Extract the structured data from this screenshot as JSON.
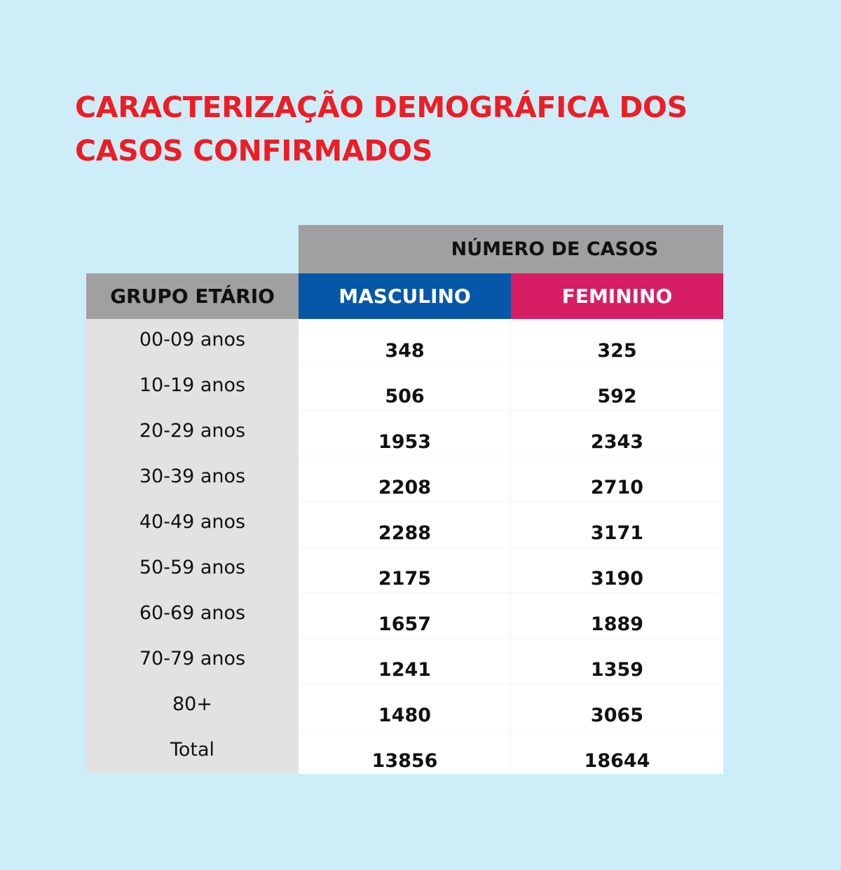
{
  "title_lines": [
    "CARACTERIZAÇÃO DEMOGRÁFICA DOS",
    "CASOS CONFIRMADOS"
  ],
  "table": {
    "header_top": "NÚMERO DE CASOS",
    "col_group": "GRUPO ETÁRIO",
    "col_masc": "MASCULINO",
    "col_fem": "FEMININO"
  },
  "colors": {
    "background": "#cdeef8",
    "title": "#ee1c25",
    "masculino": "#0757a8",
    "feminino": "#d71d63",
    "header_gray": "#a0a0a0"
  },
  "chart_data": {
    "type": "table",
    "title": "CARACTERIZAÇÃO DEMOGRÁFICA DOS CASOS CONFIRMADOS",
    "columns": [
      "GRUPO ETÁRIO",
      "MASCULINO",
      "FEMININO"
    ],
    "rows": [
      {
        "group": "00-09 anos",
        "masculino": "348",
        "feminino": "325"
      },
      {
        "group": "10-19 anos",
        "masculino": "506",
        "feminino": "592"
      },
      {
        "group": "20-29 anos",
        "masculino": "1953",
        "feminino": "2343"
      },
      {
        "group": "30-39 anos",
        "masculino": "2208",
        "feminino": "2710"
      },
      {
        "group": "40-49 anos",
        "masculino": "2288",
        "feminino": "3171"
      },
      {
        "group": "50-59 anos",
        "masculino": "2175",
        "feminino": "3190"
      },
      {
        "group": "60-69 anos",
        "masculino": "1657",
        "feminino": "1889"
      },
      {
        "group": "70-79 anos",
        "masculino": "1241",
        "feminino": "1359"
      },
      {
        "group": "80+",
        "masculino": "1480",
        "feminino": "3065"
      },
      {
        "group": "Total",
        "masculino": "13856",
        "feminino": "18644"
      }
    ]
  }
}
